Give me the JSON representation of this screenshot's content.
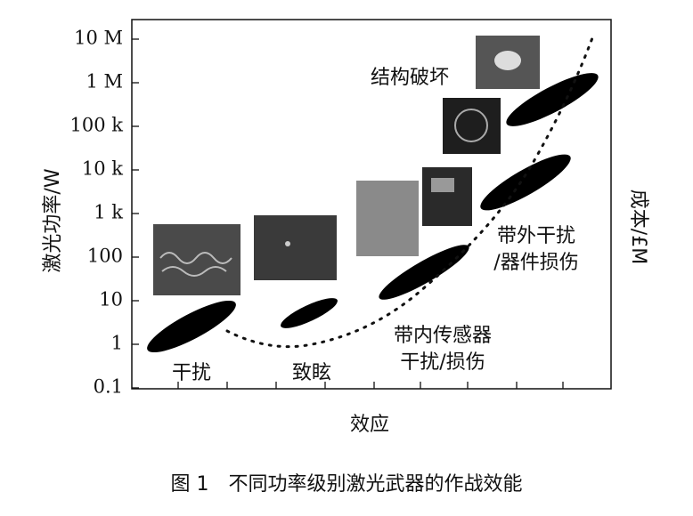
{
  "figure": {
    "y_axis": {
      "label": "激光功率/W",
      "ticks": [
        "10 M",
        "1 M",
        "100 k",
        "10 k",
        "1 k",
        "100",
        "10",
        "1",
        "0.1"
      ]
    },
    "y2_axis": {
      "label": "成本/£M"
    },
    "x_axis": {
      "label": "效应"
    },
    "regions": [
      {
        "lines": [
          "干扰"
        ]
      },
      {
        "lines": [
          "致眩"
        ]
      },
      {
        "lines": [
          "带内传感器",
          "干扰/损伤"
        ]
      },
      {
        "lines": [
          "带外干扰",
          "/器件损伤"
        ]
      },
      {
        "lines": [
          "结构破坏"
        ]
      }
    ],
    "caption": "图 1　不同功率级别激光武器的作战效能"
  }
}
